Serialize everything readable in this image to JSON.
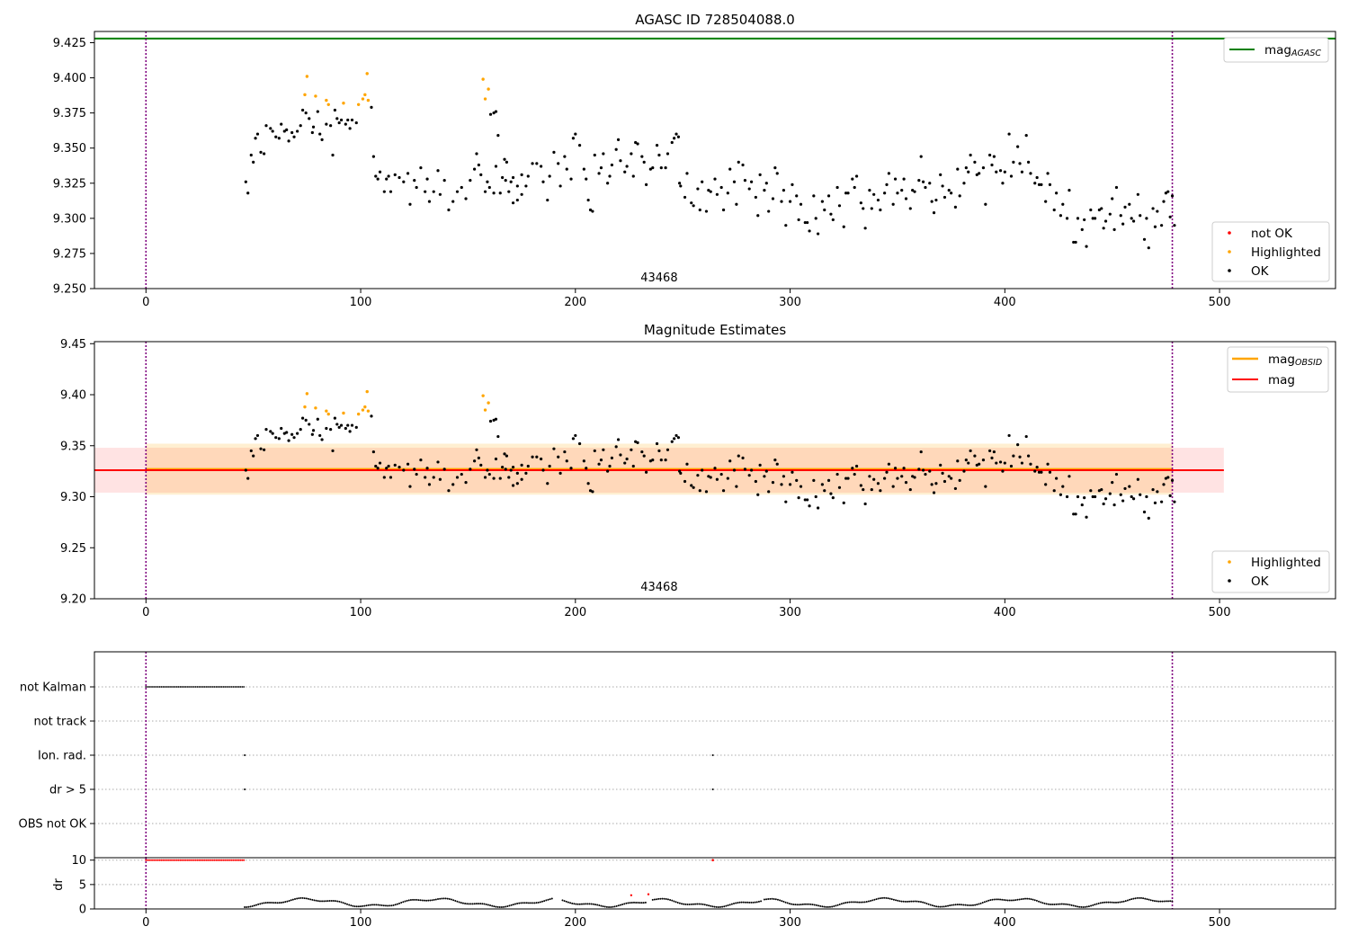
{
  "chart_data": [
    {
      "type": "scatter",
      "title": "AGASC ID 728504088.0",
      "xlim": [
        -24,
        554
      ],
      "ylim": [
        9.25,
        9.433
      ],
      "xticks": [
        0,
        100,
        200,
        300,
        400,
        500
      ],
      "yticks": [
        9.25,
        9.275,
        9.3,
        9.325,
        9.35,
        9.375,
        9.4,
        9.425
      ],
      "vlines": [
        0,
        478
      ],
      "obsid_label": {
        "text": "43468",
        "x": 239
      },
      "hline_mag_agasc": 9.428,
      "legend_lines": [
        {
          "name": "mag_AGASC",
          "main": "mag",
          "sub": "AGASC",
          "color": "#008000"
        }
      ],
      "legend_points": [
        {
          "name": "not OK",
          "color": "#ff0000"
        },
        {
          "name": "Highlighted",
          "color": "#ffa500"
        },
        {
          "name": "OK",
          "color": "#000000"
        }
      ],
      "grid": false
    },
    {
      "type": "scatter",
      "title": "Magnitude Estimates",
      "xlim": [
        -24,
        554
      ],
      "ylim": [
        9.2,
        9.452
      ],
      "xticks": [
        0,
        100,
        200,
        300,
        400,
        500
      ],
      "yticks": [
        9.2,
        9.25,
        9.3,
        9.35,
        9.4,
        9.45
      ],
      "vlines": [
        0,
        478
      ],
      "obsid_label": {
        "text": "43468",
        "x": 239
      },
      "mag_obsid": {
        "value": 9.327,
        "band": [
          9.302,
          9.352
        ],
        "x": [
          0,
          478
        ]
      },
      "mag": {
        "value": 9.326,
        "band": [
          9.304,
          9.348
        ],
        "x": [
          -24,
          502
        ]
      },
      "legend_lines": [
        {
          "name": "mag_OBSID",
          "main": "mag",
          "sub": "OBSID",
          "color": "#ffa500"
        },
        {
          "name": "mag",
          "main": "mag",
          "sub": "",
          "color": "#ff0000"
        }
      ],
      "legend_points": [
        {
          "name": "Highlighted",
          "color": "#ffa500"
        },
        {
          "name": "OK",
          "color": "#000000"
        }
      ],
      "grid": false
    },
    {
      "type": "scatter",
      "title": "",
      "xlim": [
        -24,
        554
      ],
      "xticks": [
        0,
        100,
        200,
        300,
        400,
        500
      ],
      "vlines": [
        0,
        478
      ],
      "flag_rows": [
        "not Kalman",
        "not track",
        "Ion. rad.",
        "dr > 5",
        "OBS not OK"
      ],
      "flag_events": {
        "not Kalman": {
          "x_range": [
            0,
            46
          ]
        },
        "Ion. rad.": {
          "x": [
            46,
            264
          ]
        },
        "dr > 5": {
          "x": [
            46,
            264
          ]
        }
      },
      "grid": true
    },
    {
      "type": "scatter",
      "title": "",
      "ylabel": "dr",
      "xlim": [
        -24,
        554
      ],
      "ylim": [
        0,
        10.5
      ],
      "xticks": [
        0,
        100,
        200,
        300,
        400,
        500
      ],
      "yticks": [
        0,
        5,
        10
      ],
      "vlines": [
        0,
        478
      ],
      "dr_capped": {
        "value": 10,
        "x_range": [
          0,
          46
        ],
        "extra_x": [
          264
        ]
      },
      "red_points": [
        {
          "x": 226,
          "y": 2.8
        },
        {
          "x": 234,
          "y": 3.0
        }
      ],
      "grid": true
    }
  ],
  "points": {
    "highlighted": [
      [
        74,
        9.388
      ],
      [
        75,
        9.401
      ],
      [
        79,
        9.387
      ],
      [
        84,
        9.384
      ],
      [
        85,
        9.381
      ],
      [
        92,
        9.382
      ],
      [
        99,
        9.381
      ],
      [
        101,
        9.385
      ],
      [
        102,
        9.388
      ],
      [
        103,
        9.403
      ],
      [
        103.5,
        9.384
      ],
      [
        157,
        9.399
      ],
      [
        158,
        9.385
      ],
      [
        159.5,
        9.392
      ]
    ],
    "ok": [
      [
        46.5,
        9.326
      ],
      [
        47.5,
        9.318
      ],
      [
        49,
        9.345
      ],
      [
        50,
        9.34
      ],
      [
        51,
        9.357
      ],
      [
        52,
        9.36
      ],
      [
        53.5,
        9.347
      ],
      [
        55,
        9.346
      ],
      [
        56,
        9.366
      ],
      [
        58,
        9.364
      ],
      [
        59,
        9.362
      ],
      [
        60.5,
        9.358
      ],
      [
        62,
        9.357
      ],
      [
        63,
        9.367
      ],
      [
        64.5,
        9.362
      ],
      [
        65.5,
        9.363
      ],
      [
        66.5,
        9.355
      ],
      [
        68,
        9.361
      ],
      [
        69,
        9.358
      ],
      [
        70.5,
        9.362
      ],
      [
        72,
        9.366
      ],
      [
        73,
        9.377
      ],
      [
        74.5,
        9.375
      ],
      [
        76,
        9.371
      ],
      [
        77.5,
        9.361
      ],
      [
        78,
        9.365
      ],
      [
        80,
        9.376
      ],
      [
        81,
        9.36
      ],
      [
        82,
        9.356
      ],
      [
        84,
        9.367
      ],
      [
        86,
        9.366
      ],
      [
        87,
        9.345
      ],
      [
        88,
        9.377
      ],
      [
        89,
        9.371
      ],
      [
        90,
        9.368
      ],
      [
        91,
        9.37
      ],
      [
        93,
        9.367
      ],
      [
        94,
        9.37
      ],
      [
        95,
        9.364
      ],
      [
        96,
        9.37
      ],
      [
        98,
        9.368
      ],
      [
        105,
        9.379
      ],
      [
        106,
        9.344
      ],
      [
        107,
        9.33
      ],
      [
        108,
        9.328
      ],
      [
        109,
        9.333
      ],
      [
        111,
        9.319
      ],
      [
        112,
        9.328
      ],
      [
        113,
        9.33
      ],
      [
        114,
        9.319
      ],
      [
        116,
        9.331
      ],
      [
        118,
        9.329
      ],
      [
        120,
        9.326
      ],
      [
        122,
        9.332
      ],
      [
        123,
        9.31
      ],
      [
        125,
        9.327
      ],
      [
        126,
        9.322
      ],
      [
        128,
        9.336
      ],
      [
        130,
        9.319
      ],
      [
        131,
        9.328
      ],
      [
        132,
        9.312
      ],
      [
        134,
        9.319
      ],
      [
        136,
        9.334
      ],
      [
        137,
        9.317
      ],
      [
        139,
        9.327
      ],
      [
        141,
        9.306
      ],
      [
        143,
        9.312
      ],
      [
        145,
        9.319
      ],
      [
        147,
        9.322
      ],
      [
        149,
        9.314
      ],
      [
        151,
        9.327
      ],
      [
        153,
        9.335
      ],
      [
        154,
        9.346
      ],
      [
        155,
        9.338
      ],
      [
        156,
        9.331
      ],
      [
        158,
        9.319
      ],
      [
        159,
        9.326
      ],
      [
        160,
        9.322
      ],
      [
        162,
        9.318
      ],
      [
        163,
        9.337
      ],
      [
        165,
        9.318
      ],
      [
        167,
        9.342
      ],
      [
        168,
        9.34
      ],
      [
        170,
        9.326
      ],
      [
        171,
        9.329
      ],
      [
        173,
        9.313
      ],
      [
        175,
        9.331
      ],
      [
        160.5,
        9.374
      ],
      [
        162,
        9.375
      ],
      [
        163,
        9.376
      ],
      [
        164,
        9.359
      ],
      [
        166,
        9.329
      ],
      [
        167.5,
        9.327
      ],
      [
        169,
        9.319
      ],
      [
        171,
        9.311
      ],
      [
        173,
        9.323
      ],
      [
        175,
        9.317
      ],
      [
        177,
        9.323
      ],
      [
        178,
        9.33
      ],
      [
        180,
        9.339
      ],
      [
        182,
        9.339
      ],
      [
        184,
        9.337
      ],
      [
        185,
        9.326
      ],
      [
        187,
        9.313
      ],
      [
        188,
        9.33
      ],
      [
        190,
        9.347
      ],
      [
        192,
        9.339
      ],
      [
        193,
        9.323
      ],
      [
        195,
        9.344
      ],
      [
        196,
        9.335
      ],
      [
        198,
        9.328
      ],
      [
        199,
        9.357
      ],
      [
        200,
        9.36
      ],
      [
        202,
        9.352
      ],
      [
        204,
        9.335
      ],
      [
        205,
        9.328
      ],
      [
        206,
        9.313
      ],
      [
        207,
        9.306
      ],
      [
        208,
        9.305
      ],
      [
        209,
        9.345
      ],
      [
        211,
        9.332
      ],
      [
        212,
        9.336
      ],
      [
        213,
        9.346
      ],
      [
        215,
        9.325
      ],
      [
        216,
        9.33
      ],
      [
        217,
        9.338
      ],
      [
        219,
        9.349
      ],
      [
        220,
        9.356
      ],
      [
        221,
        9.341
      ],
      [
        223,
        9.333
      ],
      [
        224,
        9.337
      ],
      [
        226,
        9.346
      ],
      [
        227,
        9.33
      ],
      [
        228,
        9.354
      ],
      [
        229,
        9.353
      ],
      [
        231,
        9.344
      ],
      [
        232,
        9.34
      ],
      [
        233,
        9.324
      ],
      [
        235,
        9.335
      ],
      [
        236,
        9.336
      ],
      [
        238,
        9.352
      ],
      [
        239,
        9.345
      ],
      [
        240,
        9.336
      ],
      [
        242,
        9.336
      ],
      [
        243,
        9.346
      ],
      [
        245,
        9.354
      ],
      [
        246,
        9.357
      ],
      [
        247,
        9.36
      ],
      [
        248,
        9.358
      ],
      [
        248.5,
        9.325
      ],
      [
        249,
        9.323
      ],
      [
        251,
        9.315
      ],
      [
        252,
        9.332
      ],
      [
        254,
        9.311
      ],
      [
        255,
        9.309
      ],
      [
        257,
        9.321
      ],
      [
        258,
        9.306
      ],
      [
        259,
        9.326
      ],
      [
        261,
        9.305
      ],
      [
        262,
        9.32
      ],
      [
        263,
        9.319
      ],
      [
        265,
        9.328
      ],
      [
        266,
        9.317
      ],
      [
        268,
        9.322
      ],
      [
        269,
        9.306
      ],
      [
        271,
        9.318
      ],
      [
        272,
        9.335
      ],
      [
        274,
        9.326
      ],
      [
        275,
        9.31
      ],
      [
        276,
        9.34
      ],
      [
        278,
        9.338
      ],
      [
        279,
        9.327
      ],
      [
        281,
        9.321
      ],
      [
        282,
        9.326
      ],
      [
        284,
        9.315
      ],
      [
        285,
        9.302
      ],
      [
        286,
        9.331
      ],
      [
        288,
        9.32
      ],
      [
        289,
        9.325
      ],
      [
        290,
        9.305
      ],
      [
        292,
        9.314
      ],
      [
        293,
        9.336
      ],
      [
        294,
        9.332
      ],
      [
        296,
        9.312
      ],
      [
        297,
        9.32
      ],
      [
        298,
        9.295
      ],
      [
        300,
        9.312
      ],
      [
        301,
        9.324
      ],
      [
        303,
        9.316
      ],
      [
        304,
        9.299
      ],
      [
        305,
        9.31
      ],
      [
        307,
        9.297
      ],
      [
        308,
        9.297
      ],
      [
        309,
        9.291
      ],
      [
        311,
        9.316
      ],
      [
        312,
        9.3
      ],
      [
        313,
        9.289
      ],
      [
        315,
        9.312
      ],
      [
        316,
        9.306
      ],
      [
        318,
        9.316
      ],
      [
        319,
        9.303
      ],
      [
        320,
        9.299
      ],
      [
        322,
        9.322
      ],
      [
        323,
        9.309
      ],
      [
        325,
        9.294
      ],
      [
        326,
        9.318
      ],
      [
        327,
        9.318
      ],
      [
        329,
        9.328
      ],
      [
        330,
        9.322
      ],
      [
        331,
        9.33
      ],
      [
        333,
        9.311
      ],
      [
        334,
        9.307
      ],
      [
        335,
        9.293
      ],
      [
        337,
        9.32
      ],
      [
        338,
        9.307
      ],
      [
        339,
        9.317
      ],
      [
        341,
        9.313
      ],
      [
        342,
        9.306
      ],
      [
        344,
        9.318
      ],
      [
        345,
        9.324
      ],
      [
        346,
        9.332
      ],
      [
        348,
        9.31
      ],
      [
        349,
        9.328
      ],
      [
        350,
        9.318
      ],
      [
        352,
        9.32
      ],
      [
        353,
        9.328
      ],
      [
        354,
        9.314
      ],
      [
        356,
        9.307
      ],
      [
        357,
        9.32
      ],
      [
        358,
        9.319
      ],
      [
        360,
        9.327
      ],
      [
        361,
        9.344
      ],
      [
        362,
        9.326
      ],
      [
        363,
        9.322
      ],
      [
        365,
        9.325
      ],
      [
        366,
        9.312
      ],
      [
        367,
        9.304
      ],
      [
        368,
        9.313
      ],
      [
        370,
        9.331
      ],
      [
        371,
        9.323
      ],
      [
        372,
        9.315
      ],
      [
        374,
        9.32
      ],
      [
        375,
        9.318
      ],
      [
        377,
        9.308
      ],
      [
        378,
        9.335
      ],
      [
        379,
        9.316
      ],
      [
        381,
        9.325
      ],
      [
        382,
        9.336
      ],
      [
        383,
        9.333
      ],
      [
        384,
        9.345
      ],
      [
        386,
        9.34
      ],
      [
        387,
        9.331
      ],
      [
        388,
        9.332
      ],
      [
        390,
        9.336
      ],
      [
        391,
        9.31
      ],
      [
        393,
        9.345
      ],
      [
        394,
        9.338
      ],
      [
        395,
        9.344
      ],
      [
        396,
        9.333
      ],
      [
        398,
        9.334
      ],
      [
        399,
        9.325
      ],
      [
        400,
        9.333
      ],
      [
        402,
        9.36
      ],
      [
        403,
        9.33
      ],
      [
        404,
        9.34
      ],
      [
        406,
        9.351
      ],
      [
        407,
        9.339
      ],
      [
        408,
        9.333
      ],
      [
        410,
        9.359
      ],
      [
        411,
        9.34
      ],
      [
        412,
        9.332
      ],
      [
        414,
        9.325
      ],
      [
        415,
        9.329
      ],
      [
        416,
        9.324
      ],
      [
        417,
        9.324
      ],
      [
        419,
        9.312
      ],
      [
        420,
        9.332
      ],
      [
        421,
        9.324
      ],
      [
        423,
        9.306
      ],
      [
        424,
        9.318
      ],
      [
        426,
        9.302
      ],
      [
        427,
        9.31
      ],
      [
        429,
        9.3
      ],
      [
        430,
        9.32
      ],
      [
        432,
        9.283
      ],
      [
        433,
        9.283
      ],
      [
        434,
        9.3
      ],
      [
        436,
        9.292
      ],
      [
        437,
        9.299
      ],
      [
        438,
        9.28
      ],
      [
        440,
        9.306
      ],
      [
        441,
        9.3
      ],
      [
        442,
        9.3
      ],
      [
        444,
        9.306
      ],
      [
        445,
        9.307
      ],
      [
        446,
        9.293
      ],
      [
        447,
        9.298
      ],
      [
        449,
        9.303
      ],
      [
        450,
        9.314
      ],
      [
        451,
        9.292
      ],
      [
        452,
        9.322
      ],
      [
        454,
        9.302
      ],
      [
        455,
        9.296
      ],
      [
        456,
        9.308
      ],
      [
        458,
        9.31
      ],
      [
        459,
        9.3
      ],
      [
        460,
        9.298
      ],
      [
        462,
        9.317
      ],
      [
        463,
        9.302
      ],
      [
        465,
        9.285
      ],
      [
        466,
        9.3
      ],
      [
        467,
        9.279
      ],
      [
        469,
        9.307
      ],
      [
        470,
        9.294
      ],
      [
        471,
        9.305
      ],
      [
        473,
        9.295
      ],
      [
        474,
        9.312
      ],
      [
        475,
        9.318
      ],
      [
        476,
        9.319
      ],
      [
        477,
        9.301
      ],
      [
        478,
        9.316
      ],
      [
        479,
        9.295
      ]
    ]
  },
  "dr_series": {
    "ranges": [
      [
        46,
        190
      ],
      [
        194,
        233
      ],
      [
        236,
        287
      ],
      [
        288,
        478
      ]
    ]
  }
}
